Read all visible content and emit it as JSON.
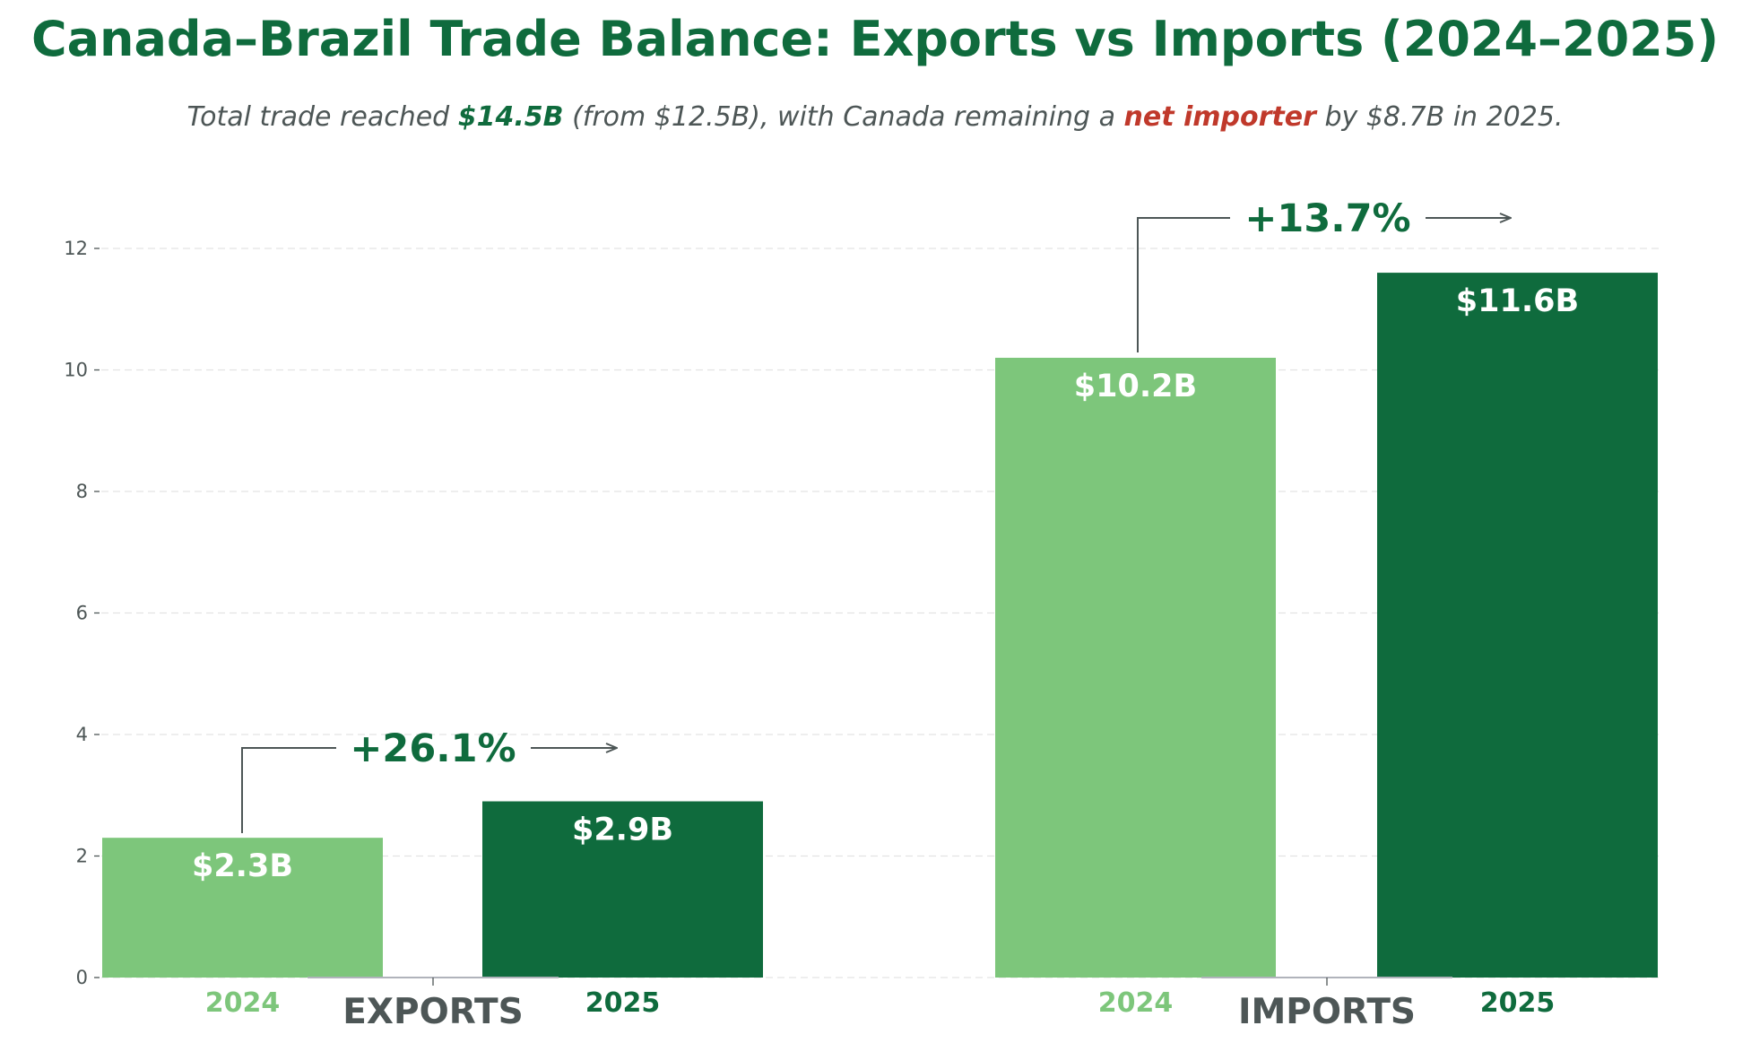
{
  "chart_data": {
    "type": "bar",
    "title": "Canada–Brazil Trade Balance: Exports vs Imports (2024–2025)",
    "subtitle": {
      "parts": [
        {
          "text": "Total trade reached ",
          "style": "normal"
        },
        {
          "text": "$14.5B",
          "style": "green-bold"
        },
        {
          "text": " (from $12.5B), with Canada remaining a ",
          "style": "normal"
        },
        {
          "text": "net importer",
          "style": "red-bold"
        },
        {
          "text": " by $8.7B in 2025.",
          "style": "normal"
        }
      ]
    },
    "categories": [
      "EXPORTS",
      "IMPORTS"
    ],
    "series": [
      {
        "name": "2024",
        "values": [
          2.3,
          10.2
        ],
        "labels": [
          "$2.3B",
          "$10.2B"
        ],
        "color": "#7dc67b"
      },
      {
        "name": "2025",
        "values": [
          2.9,
          11.6
        ],
        "labels": [
          "$2.9B",
          "$11.6B"
        ],
        "color": "#0f6b3d"
      }
    ],
    "annotations": [
      "+26.1%",
      "+13.7%"
    ],
    "yticks": [
      0,
      2,
      4,
      6,
      8,
      10,
      12
    ],
    "ylim": [
      0,
      13.2
    ],
    "grid": true,
    "colors": {
      "title": "#0f6b3d",
      "text": "#4d5656",
      "accent_red": "#c0392b",
      "arrow": "#4d5656"
    }
  }
}
